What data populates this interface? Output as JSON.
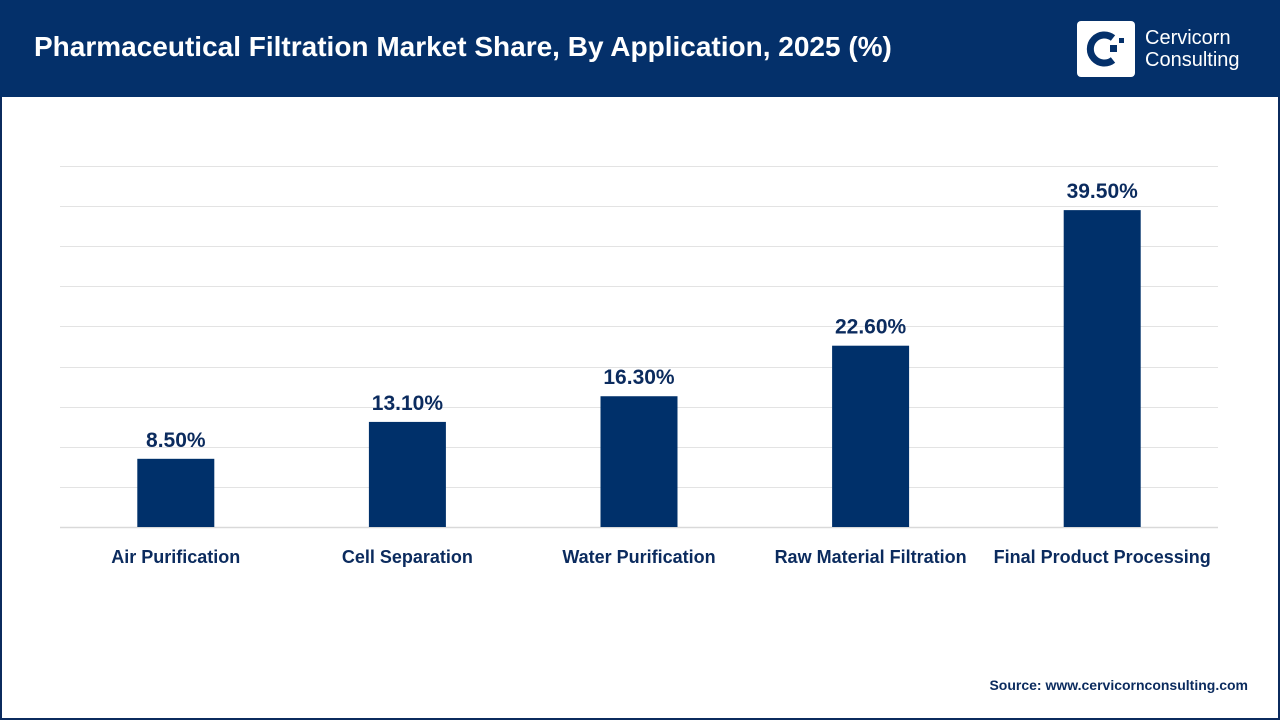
{
  "header": {
    "title": "Pharmaceutical Filtration Market Share, By Application, 2025 (%)"
  },
  "logo": {
    "line1": "Cervicorn",
    "line2": "Consulting"
  },
  "source": "Source: www.cervicornconsulting.com",
  "colors": {
    "bar": "#00306a",
    "header": "#04306a",
    "label": "#0b2b5e",
    "grid": "#e3e3e3"
  },
  "chart_data": {
    "type": "bar",
    "title": "Pharmaceutical Filtration Market Share, By Application, 2025 (%)",
    "categories": [
      "Air Purification",
      "Cell Separation",
      "Water Purification",
      "Raw Material Filtration",
      "Final Product Processing"
    ],
    "values": [
      8.5,
      13.1,
      16.3,
      22.6,
      39.5
    ],
    "data_labels": [
      "8.50%",
      "13.10%",
      "16.30%",
      "22.60%",
      "39.50%"
    ],
    "xlabel": "",
    "ylabel": "",
    "ylim": [
      0,
      45
    ],
    "y_step": 5,
    "grid": true,
    "y_tick_labels_shown": false
  }
}
